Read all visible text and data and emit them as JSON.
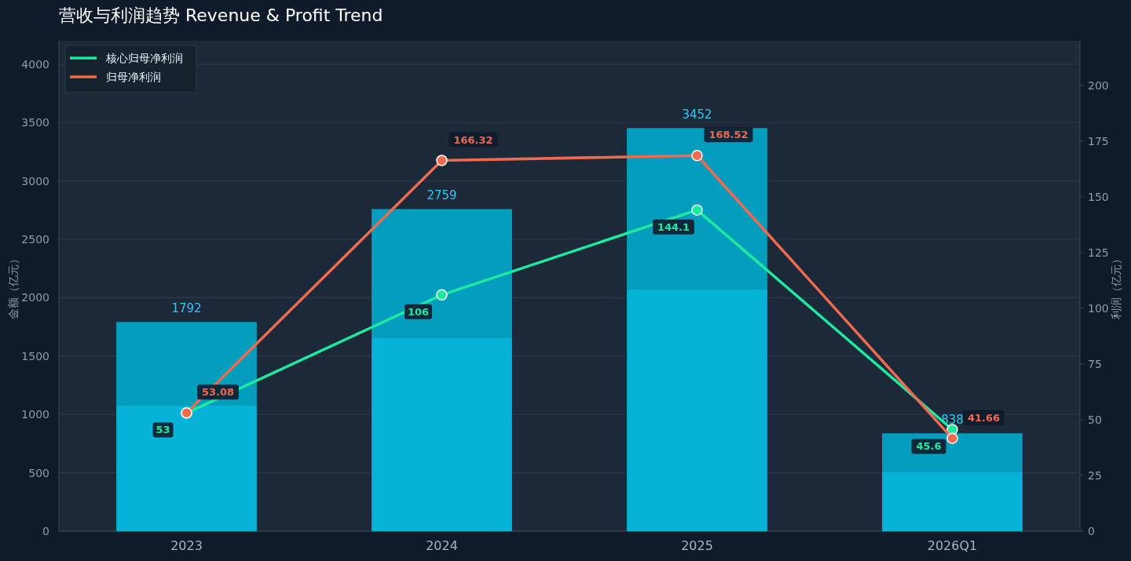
{
  "chart_data": {
    "type": "bar",
    "title": "营收与利润趋势  Revenue & Profit Trend",
    "ylabel": "金额（亿元）",
    "y2label": "利润（亿元）",
    "categories": [
      "2023",
      "2024",
      "2025",
      "2026Q1"
    ],
    "series": [
      {
        "color": "#06b2d6",
        "values": [
          1792,
          2759,
          3452,
          838
        ]
      },
      {
        "type": "line",
        "name": "核心归母净利润",
        "axis": "y2",
        "color": "#1de9a0",
        "values": [
          53,
          106,
          144.1,
          45.6
        ]
      },
      {
        "type": "line",
        "name": "归母净利润",
        "axis": "y2",
        "color": "#ef6a4f",
        "values": [
          53.08,
          166.32,
          168.52,
          41.66
        ]
      }
    ],
    "ylim": [
      0,
      4200
    ],
    "yticks": [
      0,
      500,
      1000,
      1500,
      2000,
      2500,
      3000,
      3500,
      4000
    ],
    "y2lim": [
      0,
      220
    ],
    "y2ticks": [
      0,
      25,
      50,
      75,
      100,
      125,
      150,
      175,
      200
    ],
    "grid": "y",
    "legend": "top left",
    "marker": "circle",
    "line_style": "solid",
    "data_labels": true
  }
}
